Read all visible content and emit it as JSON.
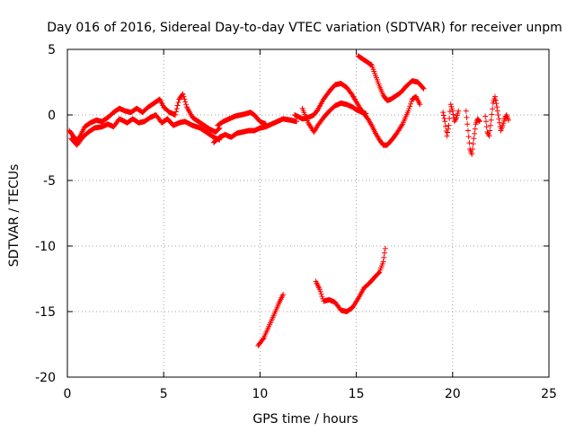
{
  "chart_data": {
    "type": "scatter",
    "title": "Day 016 of 2016, Sidereal Day-to-day VTEC variation (SDTVAR) for receiver unpm",
    "xlabel": "GPS time / hours",
    "ylabel": "SDTVAR / TECUs",
    "xlim": [
      0,
      25
    ],
    "ylim": [
      -20,
      5
    ],
    "xticks": [
      0,
      5,
      10,
      15,
      20,
      25
    ],
    "yticks": [
      5,
      0,
      -5,
      -10,
      -15,
      -20
    ],
    "grid": true,
    "marker": "+",
    "series": [
      {
        "name": "SDTVAR",
        "color": "#ff0000",
        "segments": [
          [
            [
              0.1,
              -1.2
            ],
            [
              0.3,
              -1.6
            ],
            [
              0.5,
              -2.0
            ],
            [
              0.7,
              -1.5
            ],
            [
              0.9,
              -0.9
            ],
            [
              1.2,
              -0.6
            ],
            [
              1.5,
              -0.4
            ],
            [
              1.8,
              -0.5
            ],
            [
              2.1,
              -0.2
            ],
            [
              2.4,
              0.2
            ],
            [
              2.7,
              0.5
            ],
            [
              3.0,
              0.3
            ],
            [
              3.3,
              0.2
            ],
            [
              3.6,
              0.5
            ],
            [
              3.9,
              0.2
            ],
            [
              4.2,
              0.6
            ],
            [
              4.5,
              0.9
            ],
            [
              4.8,
              1.2
            ],
            [
              5.0,
              0.6
            ],
            [
              5.3,
              0.2
            ],
            [
              5.6,
              0.0
            ],
            [
              5.8,
              1.2
            ],
            [
              6.0,
              1.6
            ],
            [
              6.2,
              0.6
            ],
            [
              6.5,
              -0.2
            ],
            [
              6.8,
              -0.5
            ],
            [
              7.1,
              -0.8
            ],
            [
              7.4,
              -1.1
            ],
            [
              7.7,
              -1.3
            ],
            [
              7.9,
              -1.0
            ]
          ],
          [
            [
              0.2,
              -1.8
            ],
            [
              0.5,
              -2.3
            ],
            [
              0.8,
              -1.7
            ],
            [
              1.1,
              -1.3
            ],
            [
              1.4,
              -1.0
            ],
            [
              1.8,
              -0.9
            ],
            [
              2.1,
              -0.7
            ],
            [
              2.4,
              -0.9
            ],
            [
              2.7,
              -0.3
            ],
            [
              3.1,
              -0.6
            ],
            [
              3.4,
              -0.3
            ],
            [
              3.7,
              -0.6
            ],
            [
              4.0,
              -0.5
            ],
            [
              4.3,
              -0.2
            ],
            [
              4.6,
              0.0
            ],
            [
              4.9,
              -0.6
            ],
            [
              5.2,
              -0.3
            ],
            [
              5.5,
              -0.8
            ],
            [
              5.8,
              -0.6
            ],
            [
              6.1,
              -0.5
            ],
            [
              6.5,
              -0.8
            ],
            [
              6.9,
              -1.0
            ],
            [
              7.3,
              -1.4
            ],
            [
              7.6,
              -1.7
            ],
            [
              7.9,
              -1.9
            ]
          ],
          [
            [
              7.6,
              -2.1
            ],
            [
              7.9,
              -1.7
            ],
            [
              8.2,
              -1.5
            ],
            [
              8.5,
              -1.7
            ],
            [
              8.8,
              -1.4
            ],
            [
              9.1,
              -1.3
            ],
            [
              9.4,
              -1.2
            ],
            [
              9.7,
              -1.2
            ],
            [
              10.0,
              -1.0
            ],
            [
              10.3,
              -0.9
            ],
            [
              10.6,
              -0.7
            ],
            [
              10.9,
              -0.5
            ],
            [
              11.2,
              -0.3
            ],
            [
              11.6,
              -0.4
            ],
            [
              11.9,
              -0.5
            ]
          ],
          [
            [
              7.8,
              -0.8
            ],
            [
              8.1,
              -0.5
            ],
            [
              8.4,
              -0.3
            ],
            [
              8.7,
              -0.1
            ],
            [
              9.0,
              0.0
            ],
            [
              9.3,
              0.1
            ],
            [
              9.5,
              0.2
            ],
            [
              9.7,
              0.0
            ],
            [
              10.0,
              -0.5
            ],
            [
              10.3,
              -0.7
            ]
          ],
          [
            [
              11.8,
              0.0
            ],
            [
              12.2,
              -0.3
            ],
            [
              12.5,
              -0.2
            ],
            [
              12.8,
              0.0
            ],
            [
              13.0,
              0.4
            ],
            [
              13.3,
              1.2
            ],
            [
              13.6,
              1.8
            ],
            [
              13.9,
              2.3
            ],
            [
              14.2,
              2.4
            ],
            [
              14.5,
              2.1
            ],
            [
              14.8,
              1.5
            ],
            [
              15.0,
              1.0
            ],
            [
              15.2,
              0.5
            ],
            [
              15.4,
              0.1
            ],
            [
              15.6,
              -0.3
            ],
            [
              15.8,
              -0.8
            ],
            [
              16.0,
              -1.4
            ],
            [
              16.2,
              -1.9
            ],
            [
              16.4,
              -2.3
            ],
            [
              16.6,
              -2.3
            ],
            [
              16.9,
              -1.8
            ],
            [
              17.1,
              -1.4
            ],
            [
              17.4,
              -0.7
            ],
            [
              17.7,
              0.3
            ],
            [
              17.9,
              1.2
            ],
            [
              18.1,
              1.4
            ],
            [
              18.3,
              0.8
            ]
          ],
          [
            [
              12.2,
              0.5
            ],
            [
              12.5,
              -0.6
            ],
            [
              12.8,
              -1.3
            ],
            [
              13.0,
              -0.8
            ],
            [
              13.3,
              -0.2
            ],
            [
              13.6,
              0.3
            ],
            [
              13.9,
              0.7
            ],
            [
              14.2,
              0.9
            ],
            [
              14.5,
              0.8
            ],
            [
              14.8,
              0.6
            ],
            [
              15.0,
              0.4
            ],
            [
              15.3,
              0.2
            ],
            [
              15.5,
              0.1
            ]
          ],
          [
            [
              15.1,
              4.5
            ],
            [
              15.4,
              4.2
            ],
            [
              15.6,
              4.0
            ],
            [
              15.8,
              3.8
            ],
            [
              16.0,
              3.0
            ],
            [
              16.2,
              2.2
            ],
            [
              16.4,
              1.5
            ],
            [
              16.6,
              1.1
            ],
            [
              16.8,
              1.2
            ],
            [
              17.0,
              1.4
            ],
            [
              17.3,
              1.7
            ],
            [
              17.6,
              2.2
            ],
            [
              17.9,
              2.6
            ],
            [
              18.2,
              2.5
            ],
            [
              18.5,
              2.0
            ]
          ],
          [
            [
              9.9,
              -17.6
            ],
            [
              10.2,
              -17.0
            ],
            [
              10.5,
              -16.0
            ],
            [
              10.8,
              -15.0
            ],
            [
              11.0,
              -14.3
            ],
            [
              11.2,
              -13.7
            ]
          ],
          [
            [
              12.9,
              -12.7
            ],
            [
              13.1,
              -13.3
            ],
            [
              13.3,
              -14.2
            ],
            [
              13.6,
              -14.1
            ],
            [
              13.9,
              -14.3
            ],
            [
              14.2,
              -14.9
            ],
            [
              14.5,
              -15.0
            ],
            [
              14.8,
              -14.7
            ],
            [
              15.1,
              -14.0
            ],
            [
              15.4,
              -13.2
            ],
            [
              15.7,
              -12.8
            ],
            [
              16.0,
              -12.3
            ],
            [
              16.2,
              -12.0
            ],
            [
              16.4,
              -11.2
            ],
            [
              16.5,
              -10.2
            ]
          ],
          [
            [
              19.5,
              0.2
            ],
            [
              19.6,
              -0.5
            ],
            [
              19.7,
              -1.6
            ],
            [
              19.8,
              -0.8
            ],
            [
              19.9,
              0.8
            ],
            [
              20.0,
              0.3
            ],
            [
              20.1,
              -0.5
            ],
            [
              20.2,
              -0.2
            ],
            [
              20.3,
              0.3
            ]
          ],
          [
            [
              20.7,
              0.3
            ],
            [
              20.8,
              -1.2
            ],
            [
              20.9,
              -2.6
            ],
            [
              21.0,
              -3.0
            ],
            [
              21.1,
              -1.8
            ],
            [
              21.2,
              -0.7
            ],
            [
              21.3,
              -0.3
            ],
            [
              21.4,
              -0.5
            ]
          ],
          [
            [
              21.7,
              -0.1
            ],
            [
              21.8,
              -1.3
            ],
            [
              21.9,
              -1.6
            ],
            [
              22.0,
              -0.4
            ],
            [
              22.1,
              0.9
            ],
            [
              22.2,
              1.4
            ],
            [
              22.3,
              0.6
            ],
            [
              22.4,
              -0.3
            ],
            [
              22.5,
              -1.2
            ],
            [
              22.6,
              -0.8
            ],
            [
              22.7,
              -0.3
            ],
            [
              22.8,
              0.0
            ],
            [
              22.9,
              -0.4
            ]
          ]
        ]
      }
    ]
  }
}
